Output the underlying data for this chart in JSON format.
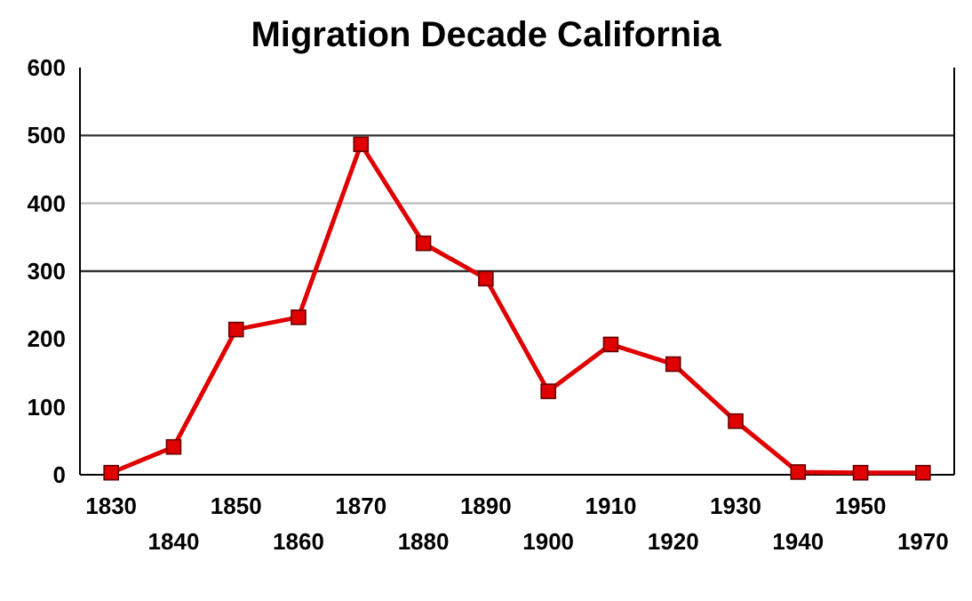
{
  "chart_data": {
    "type": "line",
    "title": "Migration Decade California",
    "categories": [
      "1830",
      "1840",
      "1850",
      "1860",
      "1870",
      "1880",
      "1890",
      "1900",
      "1910",
      "1920",
      "1930",
      "1940",
      "1950",
      "1970"
    ],
    "series": [
      {
        "color": "#e00000",
        "values": [
          3,
          41,
          214,
          232,
          487,
          341,
          289,
          123,
          192,
          163,
          79,
          4,
          3,
          3
        ]
      }
    ],
    "ylim": [
      0,
      600
    ],
    "yticks": [
      0,
      100,
      200,
      300,
      400,
      500,
      600
    ],
    "marker": "square",
    "line_style": "solid",
    "grid": false,
    "ref_lines": [
      {
        "axis": "y",
        "value": 300,
        "color": "#333333"
      },
      {
        "axis": "y",
        "value": 400,
        "color": "#bbbbbb"
      },
      {
        "axis": "y",
        "value": 500,
        "color": "#333333"
      }
    ]
  }
}
